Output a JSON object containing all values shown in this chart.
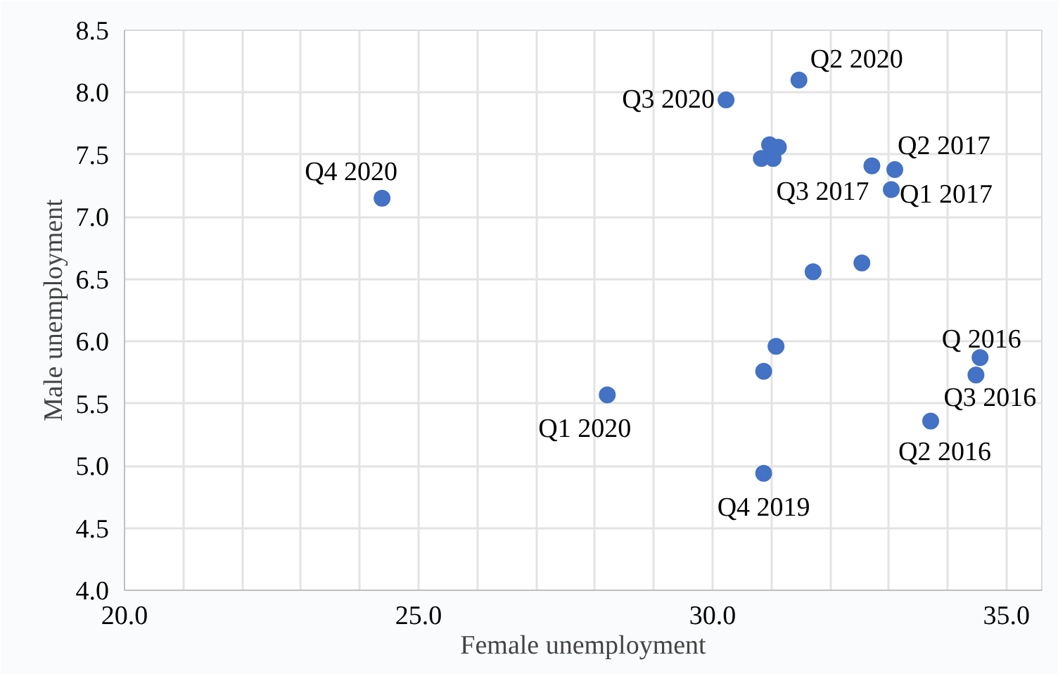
{
  "chart_data": {
    "type": "scatter",
    "xlabel": "Female unemployment",
    "ylabel": "Male unemployment",
    "x": [
      24.38,
      30.23,
      31.47,
      30.97,
      31.12,
      30.83,
      31.03,
      32.71,
      33.1,
      33.04,
      32.54,
      31.71,
      31.08,
      30.87,
      28.21,
      30.87,
      34.55,
      34.48,
      33.71
    ],
    "series": [
      {
        "color": "#4472c4",
        "values": [
          7.15,
          7.94,
          8.1,
          7.58,
          7.56,
          7.47,
          7.47,
          7.41,
          7.38,
          7.22,
          6.63,
          6.56,
          5.96,
          5.76,
          5.57,
          4.94,
          5.87,
          5.73,
          5.36
        ]
      }
    ],
    "xlim": [
      20,
      35.6
    ],
    "ylim": [
      4.0,
      8.5
    ],
    "xticks": [
      {
        "value": 20,
        "label": "20.0"
      },
      {
        "value": 21,
        "label": null
      },
      {
        "value": 22,
        "label": null
      },
      {
        "value": 23,
        "label": null
      },
      {
        "value": 24,
        "label": null
      },
      {
        "value": 25,
        "label": "25.0"
      },
      {
        "value": 26,
        "label": null
      },
      {
        "value": 27,
        "label": null
      },
      {
        "value": 28,
        "label": null
      },
      {
        "value": 29,
        "label": null
      },
      {
        "value": 30,
        "label": "30.0"
      },
      {
        "value": 31,
        "label": null
      },
      {
        "value": 32,
        "label": null
      },
      {
        "value": 33,
        "label": null
      },
      {
        "value": 34,
        "label": null
      },
      {
        "value": 35,
        "label": "35.0"
      }
    ],
    "yticks": [
      {
        "value": 4,
        "label": "4.0"
      },
      {
        "value": 4.5,
        "label": "4.5"
      },
      {
        "value": 5,
        "label": "5.0"
      },
      {
        "value": 5.5,
        "label": "5.5"
      },
      {
        "value": 6,
        "label": "6.0"
      },
      {
        "value": 6.5,
        "label": "6.5"
      },
      {
        "value": 7,
        "label": "7.0"
      },
      {
        "value": 7.5,
        "label": "7.5"
      },
      {
        "value": 8,
        "label": "8.0"
      },
      {
        "value": 8.5,
        "label": "8.5"
      }
    ],
    "grid": true,
    "marker": "circle",
    "annotations": [
      {
        "text": "Q4 2020",
        "x": 24.38,
        "y": 7.15
      },
      {
        "text": "Q3 2020",
        "x": 30.23,
        "y": 7.94
      },
      {
        "text": "Q2 2020",
        "x": 31.47,
        "y": 8.1
      },
      {
        "text": "Q2 2017",
        "x": 33.1,
        "y": 7.38
      },
      {
        "text": "Q3 2017",
        "x": 32.71,
        "y": 7.41
      },
      {
        "text": "Q1 2017",
        "x": 33.04,
        "y": 7.22
      },
      {
        "text": "Q1 2020",
        "x": 28.21,
        "y": 5.57
      },
      {
        "text": "Q4 2019",
        "x": 30.87,
        "y": 4.94
      },
      {
        "text": "Q 2016",
        "x": 34.55,
        "y": 5.87
      },
      {
        "text": "Q3 2016",
        "x": 34.48,
        "y": 5.73
      },
      {
        "text": "Q2 2016",
        "x": 33.71,
        "y": 5.36
      }
    ]
  }
}
